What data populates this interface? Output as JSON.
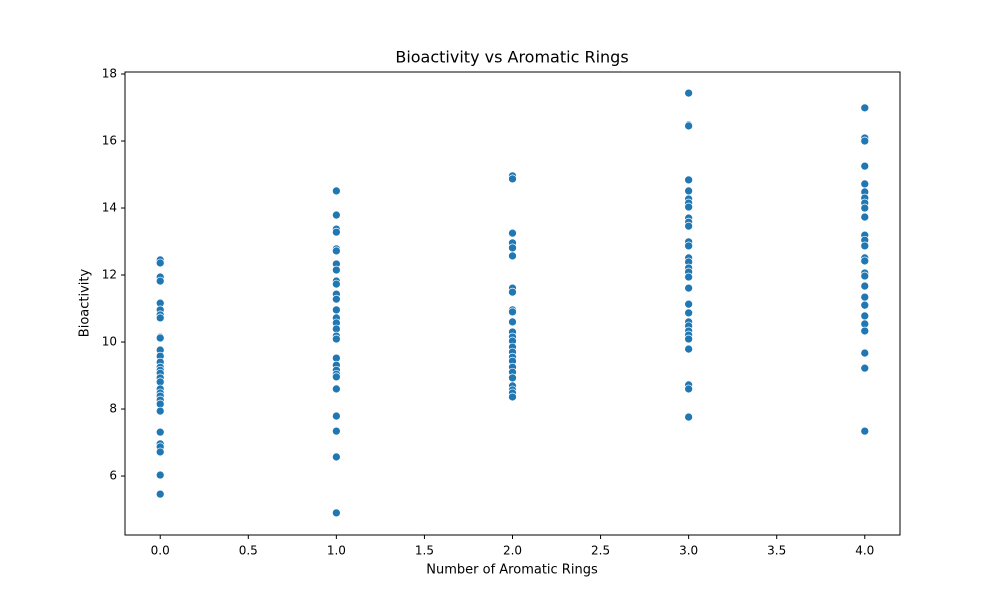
{
  "chart_data": {
    "type": "scatter",
    "title": "Bioactivity vs Aromatic Rings",
    "x_label": "Number of Aromatic Rings",
    "y_label": "Bioactivity",
    "color": "#1f77b4",
    "x": [
      0,
      0,
      0,
      0,
      0,
      0,
      0,
      0,
      0,
      0,
      0,
      0,
      0,
      0,
      0,
      0,
      0,
      0,
      0,
      0,
      0,
      0,
      0,
      0,
      0,
      0,
      0,
      0,
      0,
      0,
      1,
      1,
      1,
      1,
      1,
      1,
      1,
      1,
      1,
      1,
      1,
      1,
      1,
      1,
      1,
      1,
      1,
      1,
      1,
      1,
      1,
      1,
      1,
      1,
      1,
      1,
      1,
      1,
      2,
      2,
      2,
      2,
      2,
      2,
      2,
      2,
      2,
      2,
      2,
      2,
      2,
      2,
      2,
      2,
      2,
      2,
      2,
      2,
      2,
      2,
      2,
      2,
      2,
      3,
      3,
      3,
      3,
      3,
      3,
      3,
      3,
      3,
      3,
      3,
      3,
      3,
      3,
      3,
      3,
      3,
      3,
      3,
      3,
      3,
      3,
      3,
      3,
      3,
      3,
      3,
      3,
      3,
      3,
      4,
      4,
      4,
      4,
      4,
      4,
      4,
      4,
      4,
      4,
      4,
      4,
      4,
      4,
      4,
      4,
      4,
      4,
      4,
      4,
      4,
      4,
      4,
      4,
      4,
      4
    ],
    "y": [
      12.45,
      12.36,
      11.94,
      11.82,
      11.16,
      10.96,
      10.81,
      10.72,
      10.15,
      10.12,
      9.76,
      9.58,
      9.4,
      9.25,
      9.16,
      9.07,
      8.93,
      8.81,
      8.6,
      8.48,
      8.39,
      8.27,
      8.15,
      7.94,
      7.31,
      6.96,
      6.87,
      6.72,
      6.03,
      5.46,
      14.51,
      13.79,
      13.37,
      13.28,
      12.78,
      12.72,
      12.33,
      12.15,
      11.82,
      11.73,
      11.43,
      11.28,
      10.96,
      10.72,
      10.57,
      10.39,
      10.18,
      10.09,
      9.52,
      9.31,
      9.16,
      9.04,
      8.96,
      8.6,
      7.79,
      7.34,
      6.57,
      4.9,
      14.96,
      14.87,
      13.25,
      12.96,
      12.81,
      12.57,
      11.61,
      11.49,
      10.96,
      10.9,
      10.6,
      10.3,
      10.15,
      10.03,
      9.85,
      9.7,
      9.55,
      9.43,
      9.25,
      9.1,
      8.93,
      8.69,
      8.57,
      8.48,
      8.36,
      17.43,
      16.48,
      16.45,
      14.84,
      14.51,
      14.27,
      14.15,
      14.03,
      13.7,
      13.58,
      13.46,
      12.99,
      12.87,
      12.51,
      12.39,
      12.21,
      12.09,
      11.94,
      11.61,
      11.13,
      10.87,
      10.6,
      10.48,
      10.33,
      10.21,
      10.09,
      9.79,
      8.72,
      8.6,
      7.76,
      16.99,
      16.09,
      16.0,
      15.25,
      14.72,
      14.48,
      14.3,
      14.15,
      14.0,
      13.73,
      13.19,
      13.04,
      12.87,
      12.51,
      12.42,
      12.06,
      11.97,
      11.67,
      11.34,
      11.1,
      10.78,
      10.54,
      10.33,
      9.67,
      9.22,
      7.34
    ],
    "xlim": [
      -0.2,
      4.2
    ],
    "ylim": [
      4.24,
      18.06
    ],
    "xticks": [
      {
        "value": 0,
        "label": "0.0"
      },
      {
        "value": 0.5,
        "label": "0.5"
      },
      {
        "value": 1,
        "label": "1.0"
      },
      {
        "value": 1.5,
        "label": "1.5"
      },
      {
        "value": 2,
        "label": "2.0"
      },
      {
        "value": 2.5,
        "label": "2.5"
      },
      {
        "value": 3,
        "label": "3.0"
      },
      {
        "value": 3.5,
        "label": "3.5"
      },
      {
        "value": 4,
        "label": "4.0"
      }
    ],
    "yticks": [
      6,
      8,
      10,
      12,
      14,
      16,
      18
    ],
    "grid": false
  }
}
